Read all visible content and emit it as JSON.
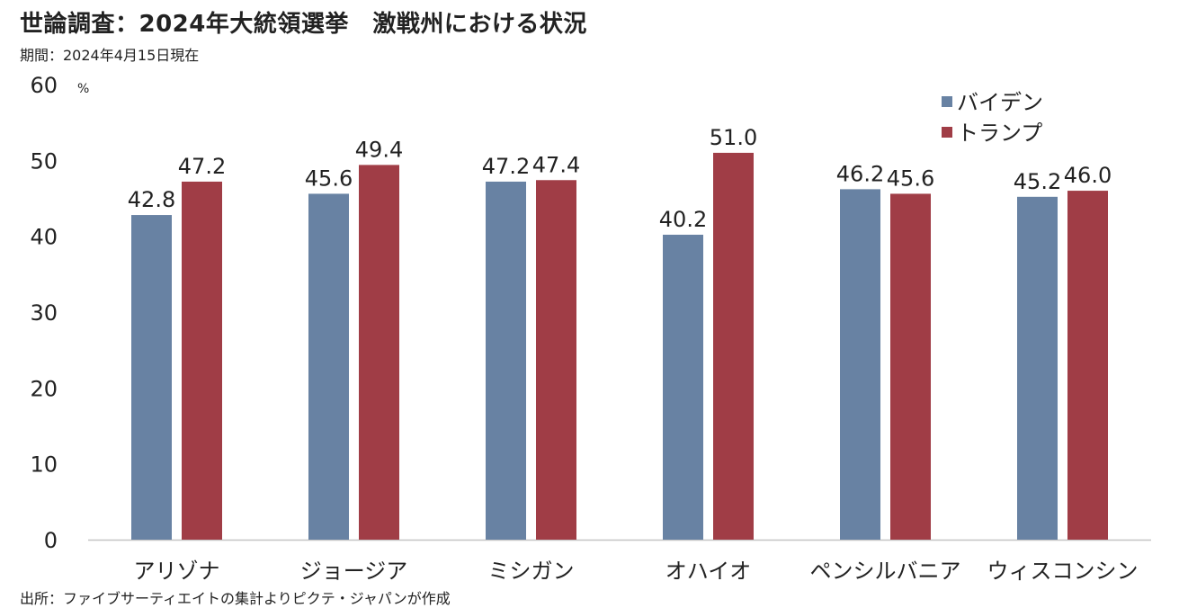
{
  "title": "世論調査：2024年大統領選挙　激戦州における状況",
  "period": "期間：2024年4月15日現在",
  "source": "出所：ファイブサーティエイトの集計よりピクテ・ジャパンが作成",
  "chart_data": {
    "type": "bar",
    "categories": [
      "アリゾナ",
      "ジョージア",
      "ミシガン",
      "オハイオ",
      "ペンシルバニア",
      "ウィスコンシン"
    ],
    "series": [
      {
        "name": "バイデン",
        "values": [
          42.8,
          45.6,
          47.2,
          40.2,
          46.2,
          45.2
        ],
        "labels": [
          "42.8",
          "45.6",
          "47.2",
          "40.2",
          "46.2",
          "45.2"
        ],
        "color": "#6882a3"
      },
      {
        "name": "トランプ",
        "values": [
          47.2,
          49.4,
          47.4,
          51.0,
          45.6,
          46.0
        ],
        "labels": [
          "47.2",
          "49.4",
          "47.4",
          "51.0",
          "45.6",
          "46.0"
        ],
        "color": "#a03d46"
      }
    ],
    "ylim": [
      0,
      60
    ],
    "yticks": [
      0,
      10,
      20,
      30,
      40,
      50,
      60
    ],
    "y_unit": "%",
    "legend_position": "top-right",
    "grid": false
  }
}
